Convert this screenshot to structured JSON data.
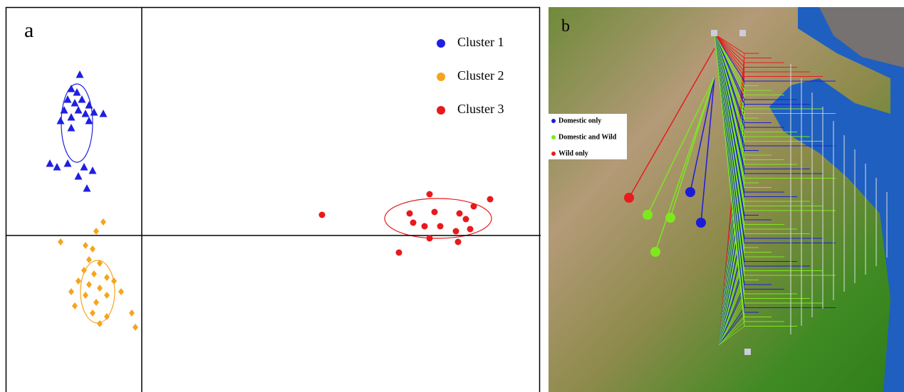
{
  "chart_data": {
    "type": "scatter",
    "label": "a",
    "xlim": [
      -1.9,
      5.6
    ],
    "ylim": [
      -2.2,
      3.2
    ],
    "legend": "upper right",
    "series": [
      {
        "name": "Cluster 1",
        "color": "#1f1fe0",
        "marker": "triangle",
        "x": [
          -0.87,
          -0.99,
          -0.91,
          -1.04,
          -0.94,
          -0.84,
          -0.74,
          -1.09,
          -0.89,
          -0.79,
          -0.67,
          -0.54,
          -0.99,
          -1.14,
          -0.74,
          -0.99,
          -1.29,
          -1.19,
          -1.04,
          -0.81,
          -0.69,
          -0.89,
          -0.77
        ],
        "values": [
          2.26,
          2.06,
          2.01,
          1.91,
          1.86,
          1.91,
          1.83,
          1.76,
          1.76,
          1.71,
          1.73,
          1.71,
          1.66,
          1.61,
          1.61,
          1.51,
          1.01,
          0.96,
          1.01,
          0.96,
          0.91,
          0.83,
          0.66
        ]
      },
      {
        "name": "Cluster 2",
        "color": "#f5a51c",
        "marker": "diamond",
        "x": [
          -0.54,
          -0.64,
          -1.14,
          -0.79,
          -0.69,
          -0.74,
          -0.59,
          -0.81,
          -0.67,
          -0.49,
          -0.89,
          -0.39,
          -0.74,
          -0.59,
          -0.99,
          -0.79,
          -0.49,
          -0.29,
          -0.64,
          -0.94,
          -0.69,
          -0.49,
          -0.14,
          -0.09,
          -0.59
        ],
        "values": [
          0.19,
          0.06,
          -0.09,
          -0.14,
          -0.19,
          -0.34,
          -0.39,
          -0.49,
          -0.54,
          -0.59,
          -0.64,
          -0.64,
          -0.69,
          -0.74,
          -0.79,
          -0.84,
          -0.84,
          -0.79,
          -0.94,
          -0.99,
          -1.09,
          -1.14,
          -1.09,
          -1.29,
          -1.24
        ]
      },
      {
        "name": "Cluster 3",
        "color": "#e8191c",
        "marker": "circle",
        "x": [
          2.53,
          4.04,
          4.89,
          3.76,
          4.11,
          4.46,
          3.81,
          3.97,
          4.19,
          4.55,
          4.61,
          4.41,
          4.04,
          4.44,
          3.61,
          4.66
        ],
        "values": [
          0.29,
          0.58,
          0.51,
          0.31,
          0.33,
          0.31,
          0.18,
          0.13,
          0.13,
          0.23,
          0.09,
          0.06,
          -0.04,
          -0.09,
          -0.24,
          0.41
        ]
      }
    ]
  },
  "map_panel": {
    "label": "b",
    "legend": [
      "Domestic only",
      "Domestic and Wild",
      "Wild only"
    ]
  }
}
